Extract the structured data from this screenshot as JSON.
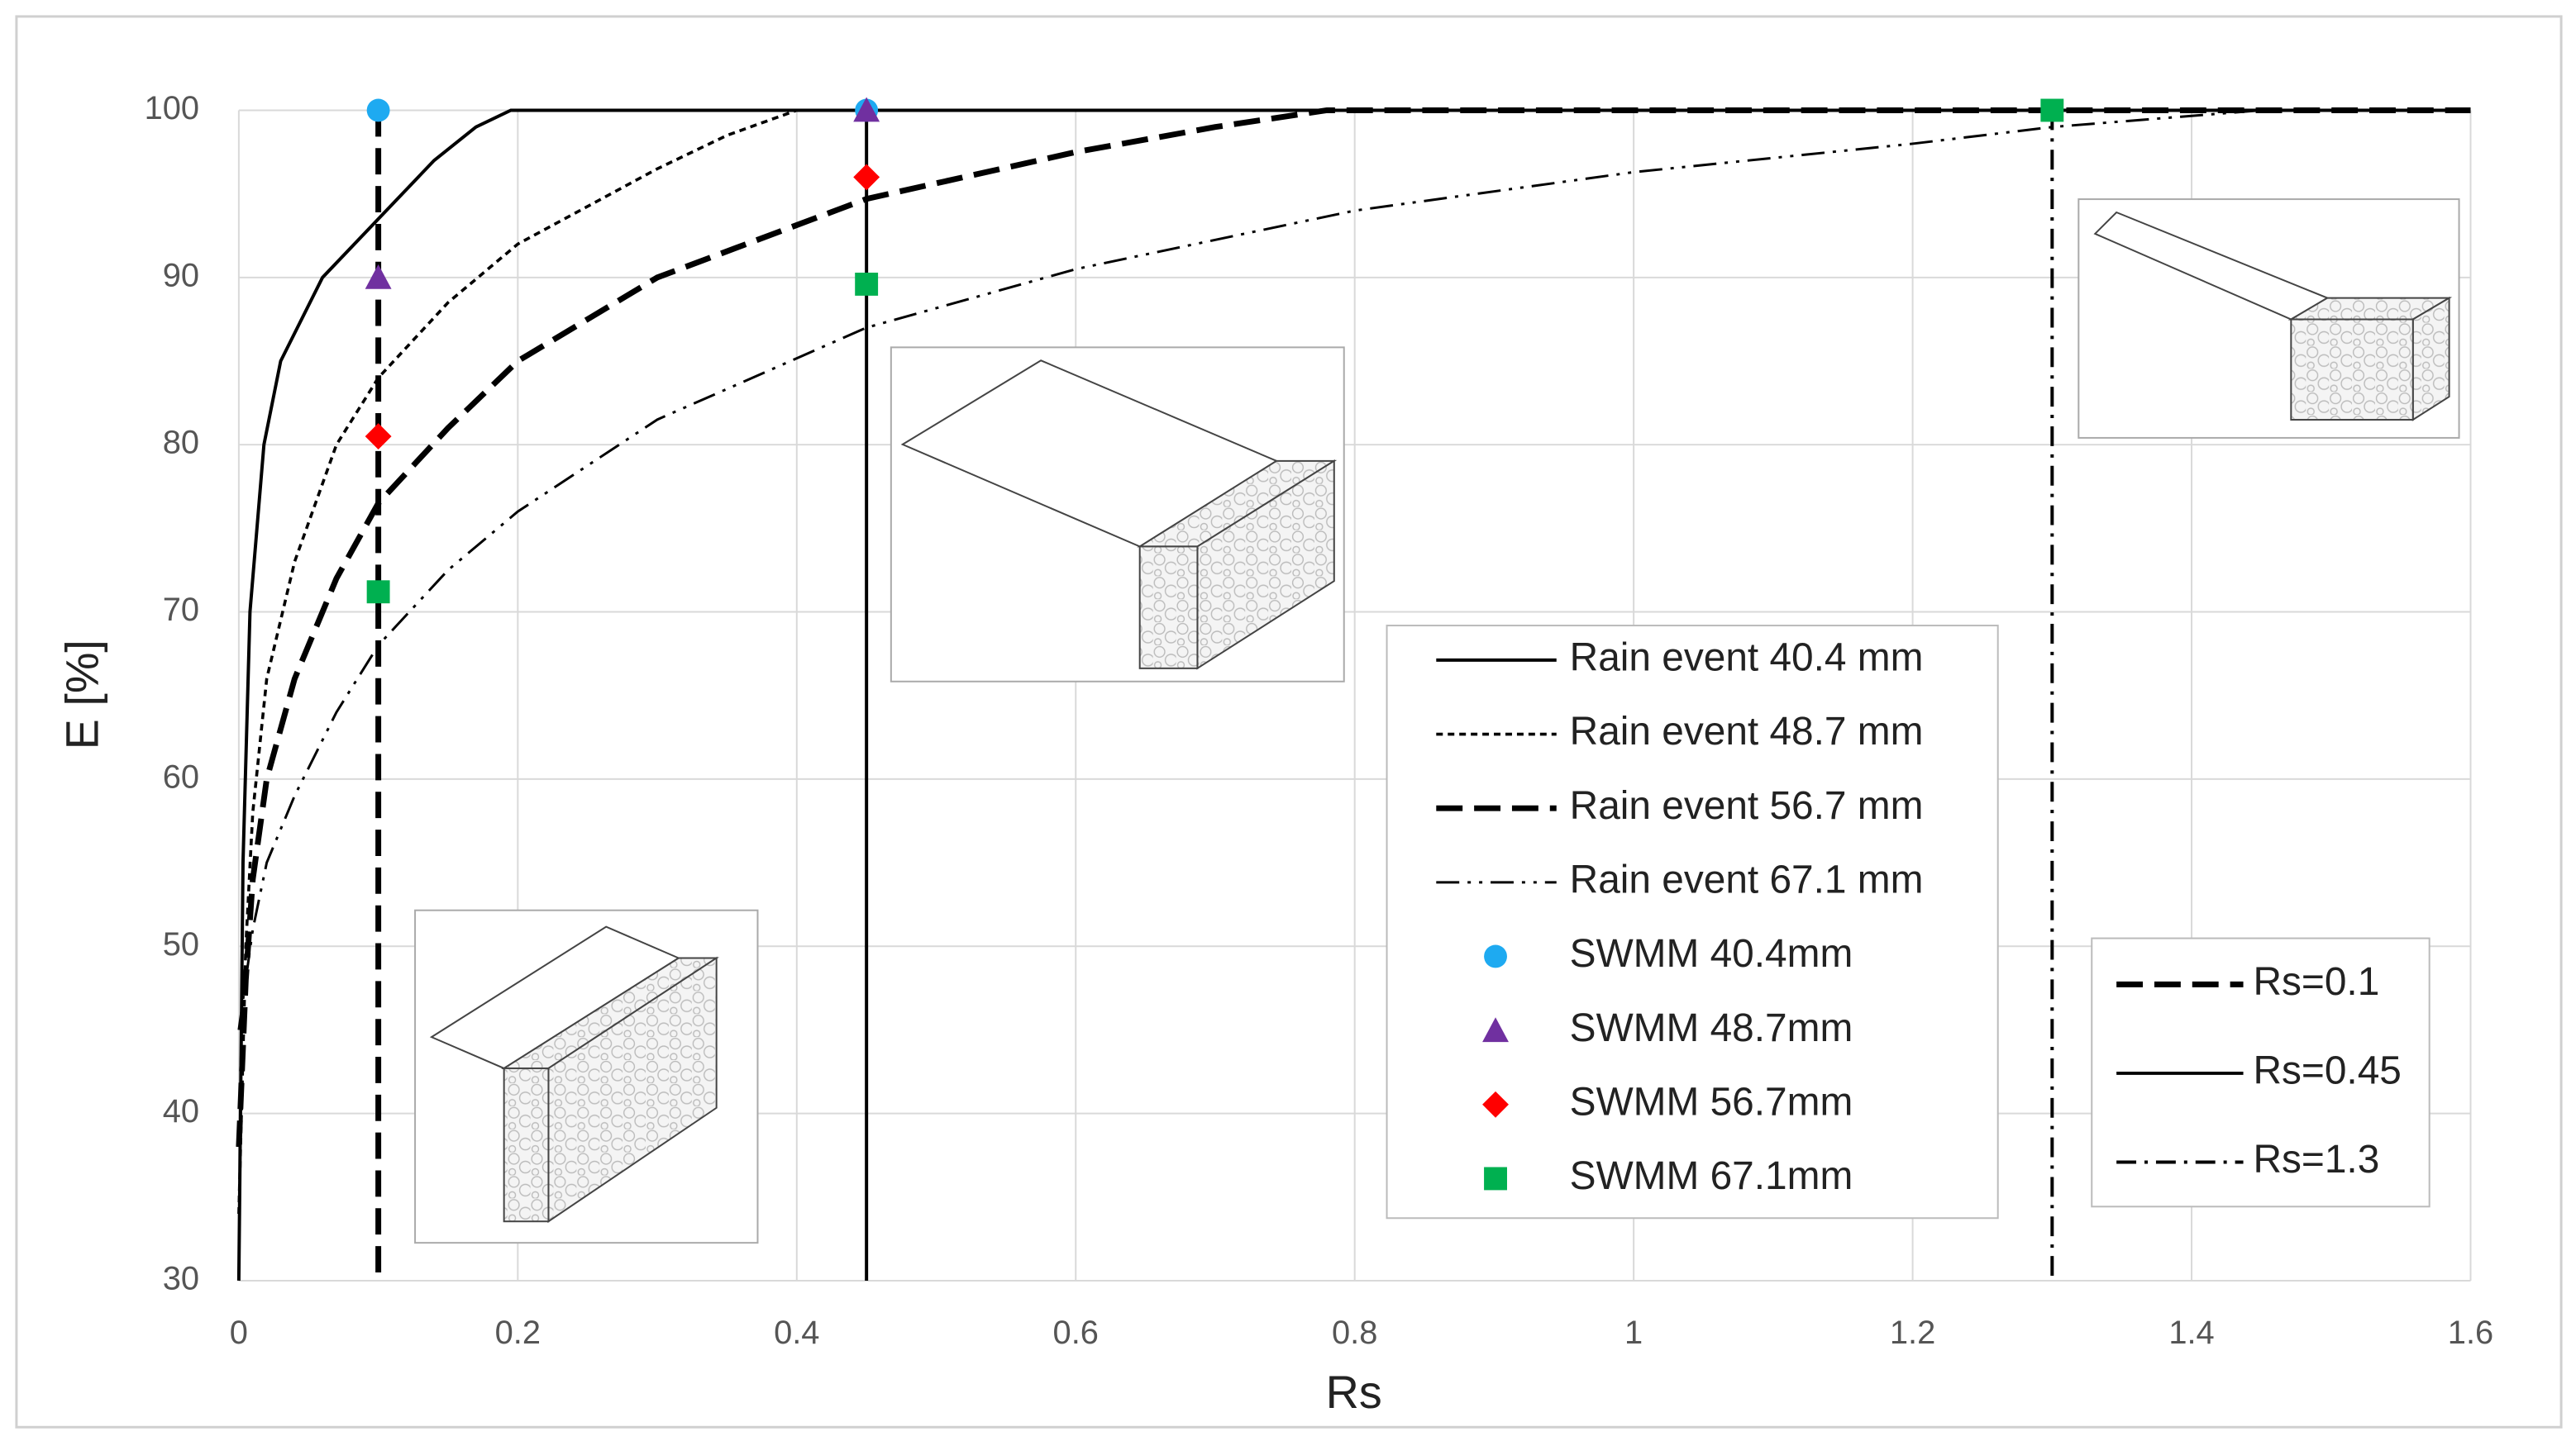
{
  "chart_data": {
    "type": "line",
    "x_label": "Rs",
    "y_label": "E [%]",
    "xlim": [
      0,
      1.6
    ],
    "ylim": [
      30,
      100
    ],
    "xticks": [
      0,
      0.2,
      0.4,
      0.6,
      0.8,
      1,
      1.2,
      1.4,
      1.6
    ],
    "yticks": [
      30,
      40,
      50,
      60,
      70,
      80,
      90,
      100
    ],
    "grid": true,
    "series": [
      {
        "name": "Rain event 40.4 mm",
        "color": "#000000",
        "line_style": "solid",
        "x": [
          0,
          0.003,
          0.008,
          0.018,
          0.03,
          0.06,
          0.1,
          0.14,
          0.17,
          0.195,
          1.6
        ],
        "values": [
          30,
          55,
          70,
          80,
          85,
          90,
          93.5,
          97,
          99,
          100,
          100
        ]
      },
      {
        "name": "Rain event 48.7 mm",
        "color": "#000000",
        "line_style": "dotted",
        "x": [
          0,
          0.005,
          0.01,
          0.02,
          0.04,
          0.07,
          0.1,
          0.15,
          0.2,
          0.3,
          0.35,
          0.4,
          1.6
        ],
        "values": [
          34,
          50,
          58,
          66,
          73,
          80,
          84,
          88.5,
          92,
          96.5,
          98.5,
          100,
          100
        ]
      },
      {
        "name": "Rain event 56.7 mm",
        "color": "#000000",
        "line_style": "dashed",
        "x": [
          0,
          0.005,
          0.01,
          0.02,
          0.04,
          0.07,
          0.1,
          0.15,
          0.2,
          0.3,
          0.45,
          0.6,
          0.7,
          0.78,
          1.6
        ],
        "values": [
          38,
          48,
          54,
          60,
          66,
          72,
          76.5,
          81,
          85,
          90,
          94.7,
          97.5,
          99,
          100,
          100
        ]
      },
      {
        "name": "Rain event 67.1 mm",
        "color": "#000000",
        "line_style": "dashdotdot",
        "x": [
          0,
          0.005,
          0.01,
          0.02,
          0.04,
          0.07,
          0.1,
          0.15,
          0.2,
          0.3,
          0.45,
          0.6,
          0.8,
          1.0,
          1.2,
          1.3,
          1.45,
          1.6
        ],
        "values": [
          45,
          48,
          51,
          55,
          59,
          64,
          68,
          72.5,
          76,
          81.5,
          87,
          90.5,
          94,
          96.3,
          98,
          99,
          100,
          100
        ]
      },
      {
        "name": "SWMM 40.4mm",
        "color": "#1eaaf1",
        "marker": "circle",
        "x": [
          0.1,
          0.45
        ],
        "values": [
          100,
          100
        ]
      },
      {
        "name": "SWMM 48.7mm",
        "color": "#7030a0",
        "marker": "triangle",
        "x": [
          0.1,
          0.45
        ],
        "values": [
          90,
          100
        ]
      },
      {
        "name": "SWMM 56.7mm",
        "color": "#ff0000",
        "marker": "diamond",
        "x": [
          0.1,
          0.45
        ],
        "values": [
          80.5,
          96
        ]
      },
      {
        "name": "SWMM 67.1mm",
        "color": "#00b050",
        "marker": "square",
        "x": [
          0.1,
          0.45,
          1.3
        ],
        "values": [
          71.2,
          89.6,
          100
        ]
      }
    ],
    "reference_lines": [
      {
        "name": "Rs=0.1",
        "x": 0.1,
        "line_style": "dashed"
      },
      {
        "name": "Rs=0.45",
        "x": 0.45,
        "line_style": "solid"
      },
      {
        "name": "Rs=1.3",
        "x": 1.3,
        "line_style": "dashdot"
      }
    ]
  }
}
